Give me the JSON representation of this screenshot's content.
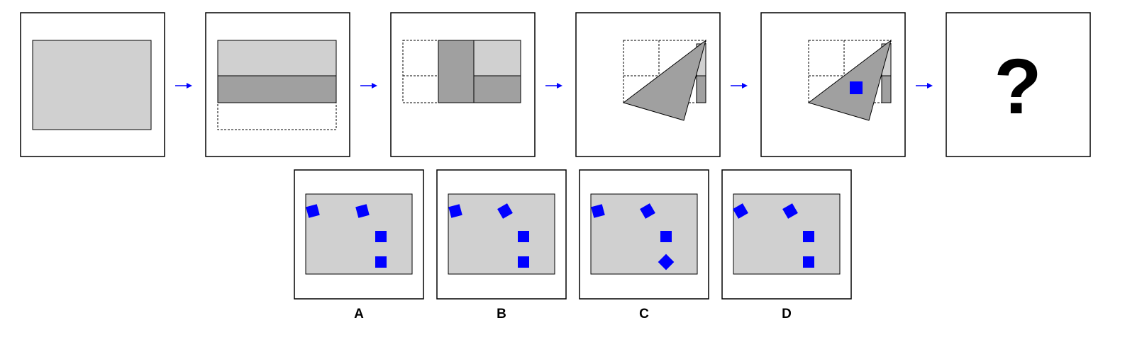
{
  "question_mark": "?",
  "options": [
    {
      "label": "A"
    },
    {
      "label": "B"
    },
    {
      "label": "C"
    },
    {
      "label": "D"
    }
  ],
  "colors": {
    "paper": "#d0d0d0",
    "folded_paper": "#a0a0a0",
    "hole": "#0000ff",
    "arrow": "#0000ff",
    "frame": "#000000"
  }
}
